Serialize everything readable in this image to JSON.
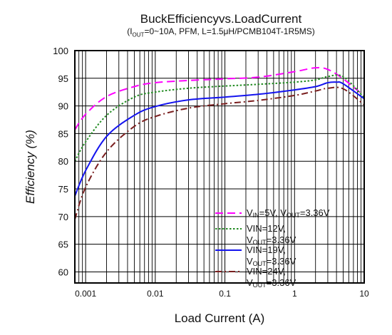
{
  "chart_data": {
    "type": "line",
    "title": "BuckEfficiencyvs.LoadCurrent",
    "subtitle": {
      "pre": "(I",
      "sub": "OUT",
      "post": "=0~10A, PFM, L=1.5μH/PCMB104T-1R5MS)"
    },
    "xlabel": "Load Current (A)",
    "ylabel": "Efficiency (%)",
    "x_scale": "log",
    "xlim": [
      0.0007,
      10
    ],
    "ylim": [
      58,
      100
    ],
    "x_ticks": [
      {
        "value": 0.001,
        "label": "0.001"
      },
      {
        "value": 0.01,
        "label": "0.01"
      },
      {
        "value": 0.1,
        "label": "0.1"
      },
      {
        "value": 1,
        "label": "1"
      },
      {
        "value": 10,
        "label": "10"
      }
    ],
    "y_ticks": [
      {
        "value": 60,
        "label": "60"
      },
      {
        "value": 65,
        "label": "65"
      },
      {
        "value": 70,
        "label": "70"
      },
      {
        "value": 75,
        "label": "75"
      },
      {
        "value": 80,
        "label": "80"
      },
      {
        "value": 85,
        "label": "85"
      },
      {
        "value": 90,
        "label": "90"
      },
      {
        "value": 95,
        "label": "95"
      },
      {
        "value": 100,
        "label": "100"
      }
    ],
    "grid": true,
    "legend_position": "bottom-right",
    "series": [
      {
        "key": "vin5",
        "legend": [
          [
            {
              "t": "V"
            },
            {
              "t": "IN",
              "sub": true
            },
            {
              "t": "=5V, V"
            },
            {
              "t": "OUT",
              "sub": true
            },
            {
              "t": "=3.36V"
            }
          ]
        ],
        "color": "#ff00ff",
        "dash": "dashed",
        "x": [
          0.0007,
          0.001,
          0.002,
          0.005,
          0.01,
          0.03,
          0.1,
          0.3,
          1,
          2,
          3,
          5,
          10
        ],
        "y": [
          85.7,
          88.5,
          91.7,
          93.5,
          94.2,
          94.6,
          94.9,
          95.2,
          96.2,
          96.9,
          96.6,
          94.9,
          91.8
        ]
      },
      {
        "key": "vin12",
        "legend": [
          [
            {
              "t": "VIN=12V,"
            }
          ],
          [
            {
              "t": "V"
            },
            {
              "t": "OUT",
              "sub": true
            },
            {
              "t": "=3.36V"
            }
          ]
        ],
        "color": "#228b22",
        "dash": "dotted",
        "x": [
          0.0007,
          0.001,
          0.002,
          0.005,
          0.01,
          0.03,
          0.1,
          0.3,
          1,
          2,
          3,
          5,
          10
        ],
        "y": [
          80,
          83.5,
          88.3,
          91.6,
          92.5,
          93.2,
          93.6,
          93.9,
          94.3,
          94.7,
          95.3,
          95.3,
          91.5
        ]
      },
      {
        "key": "vin19",
        "legend": [
          [
            {
              "t": "VIN=19V,"
            }
          ],
          [
            {
              "t": "V"
            },
            {
              "t": "OUT",
              "sub": true
            },
            {
              "t": "=3.36V"
            }
          ]
        ],
        "color": "#1414ee",
        "dash": "solid",
        "x": [
          0.0007,
          0.001,
          0.002,
          0.005,
          0.01,
          0.03,
          0.1,
          0.3,
          1,
          2,
          3,
          4,
          5,
          10
        ],
        "y": [
          73.7,
          78.3,
          84.5,
          88.3,
          89.9,
          91.1,
          91.6,
          92.1,
          92.9,
          93.5,
          94.2,
          94.3,
          94.0,
          91.3
        ]
      },
      {
        "key": "vin24",
        "legend": [
          [
            {
              "t": "VIN=24V,"
            }
          ],
          [
            {
              "t": "V"
            },
            {
              "t": "OUT",
              "sub": true
            },
            {
              "t": "=3.36V"
            }
          ]
        ],
        "color": "#7a1f1f",
        "dash": "dashdot",
        "x": [
          0.0007,
          0.001,
          0.002,
          0.005,
          0.01,
          0.03,
          0.1,
          0.3,
          1,
          2,
          3,
          5,
          10
        ],
        "y": [
          69.5,
          75.3,
          81.7,
          86.3,
          88.1,
          89.6,
          90.4,
          91,
          91.9,
          92.7,
          93.2,
          93.1,
          90.2
        ]
      }
    ]
  }
}
